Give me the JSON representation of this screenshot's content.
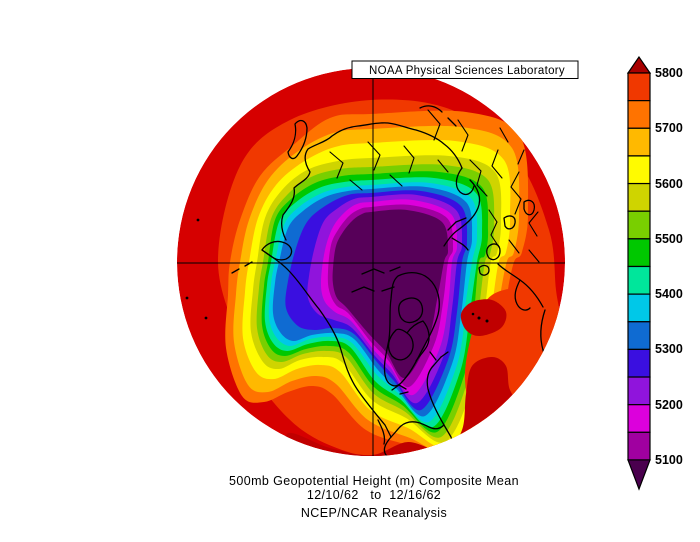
{
  "header": {
    "source_label": "NOAA Physical Sciences Laboratory"
  },
  "caption": {
    "line1": "500mb Geopotential Height (m) Composite Mean",
    "line2": "12/10/62   to  12/16/62",
    "line3": "NCEP/NCAR Reanalysis"
  },
  "colorbar": {
    "labels": [
      "5800",
      "5700",
      "5600",
      "5500",
      "5400",
      "5300",
      "5200",
      "5100"
    ]
  },
  "chart_data": {
    "type": "heatmap",
    "title": "500mb Geopotential Height (m) Composite Mean",
    "period_start": "12/10/62",
    "period_end": "12/16/62",
    "dataset": "NCEP/NCAR Reanalysis",
    "variable": "500mb Geopotential Height",
    "units": "m",
    "projection": "Northern Hemisphere polar stereographic",
    "contour_interval_m": 50,
    "value_range_shown": [
      5100,
      5800
    ],
    "colorbar_ticks": [
      5800,
      5700,
      5600,
      5500,
      5400,
      5300,
      5200,
      5100
    ],
    "levels": [
      {
        "range": "<5100",
        "color": "#570059"
      },
      {
        "range": "5100-5150",
        "color": "#A000A0"
      },
      {
        "range": "5150-5200",
        "color": "#DC00DC"
      },
      {
        "range": "5200-5250",
        "color": "#9014DC"
      },
      {
        "range": "5250-5300",
        "color": "#3A0FE0"
      },
      {
        "range": "5300-5350",
        "color": "#0F6BD2"
      },
      {
        "range": "5350-5400",
        "color": "#00C8E8"
      },
      {
        "range": "5400-5450",
        "color": "#00E69B"
      },
      {
        "range": "5450-5500",
        "color": "#00C800"
      },
      {
        "range": "5500-5550",
        "color": "#79CF00"
      },
      {
        "range": "5550-5600",
        "color": "#CFD400"
      },
      {
        "range": "5600-5650",
        "color": "#FFFB00"
      },
      {
        "range": "5650-5700",
        "color": "#FFB900"
      },
      {
        "range": "5700-5750",
        "color": "#FF7300"
      },
      {
        "range": "5750-5800",
        "color": "#F03800"
      },
      {
        "range": ">5800",
        "color": "#D60000"
      }
    ],
    "map_extras": {
      "deep_red_patch": "#C00000",
      "colorbar_arrow_top": "#A80000",
      "colorbar_arrow_bottom": "#4A004E"
    },
    "features": [
      "deep low center below 5100 m over the central Arctic, Greenland and eastern Canada",
      "secondary trough lobe near 5250-5300 m over the Gulf of Alaska",
      "ridge above 5800 m over the subtropical North Atlantic and map edges"
    ]
  }
}
